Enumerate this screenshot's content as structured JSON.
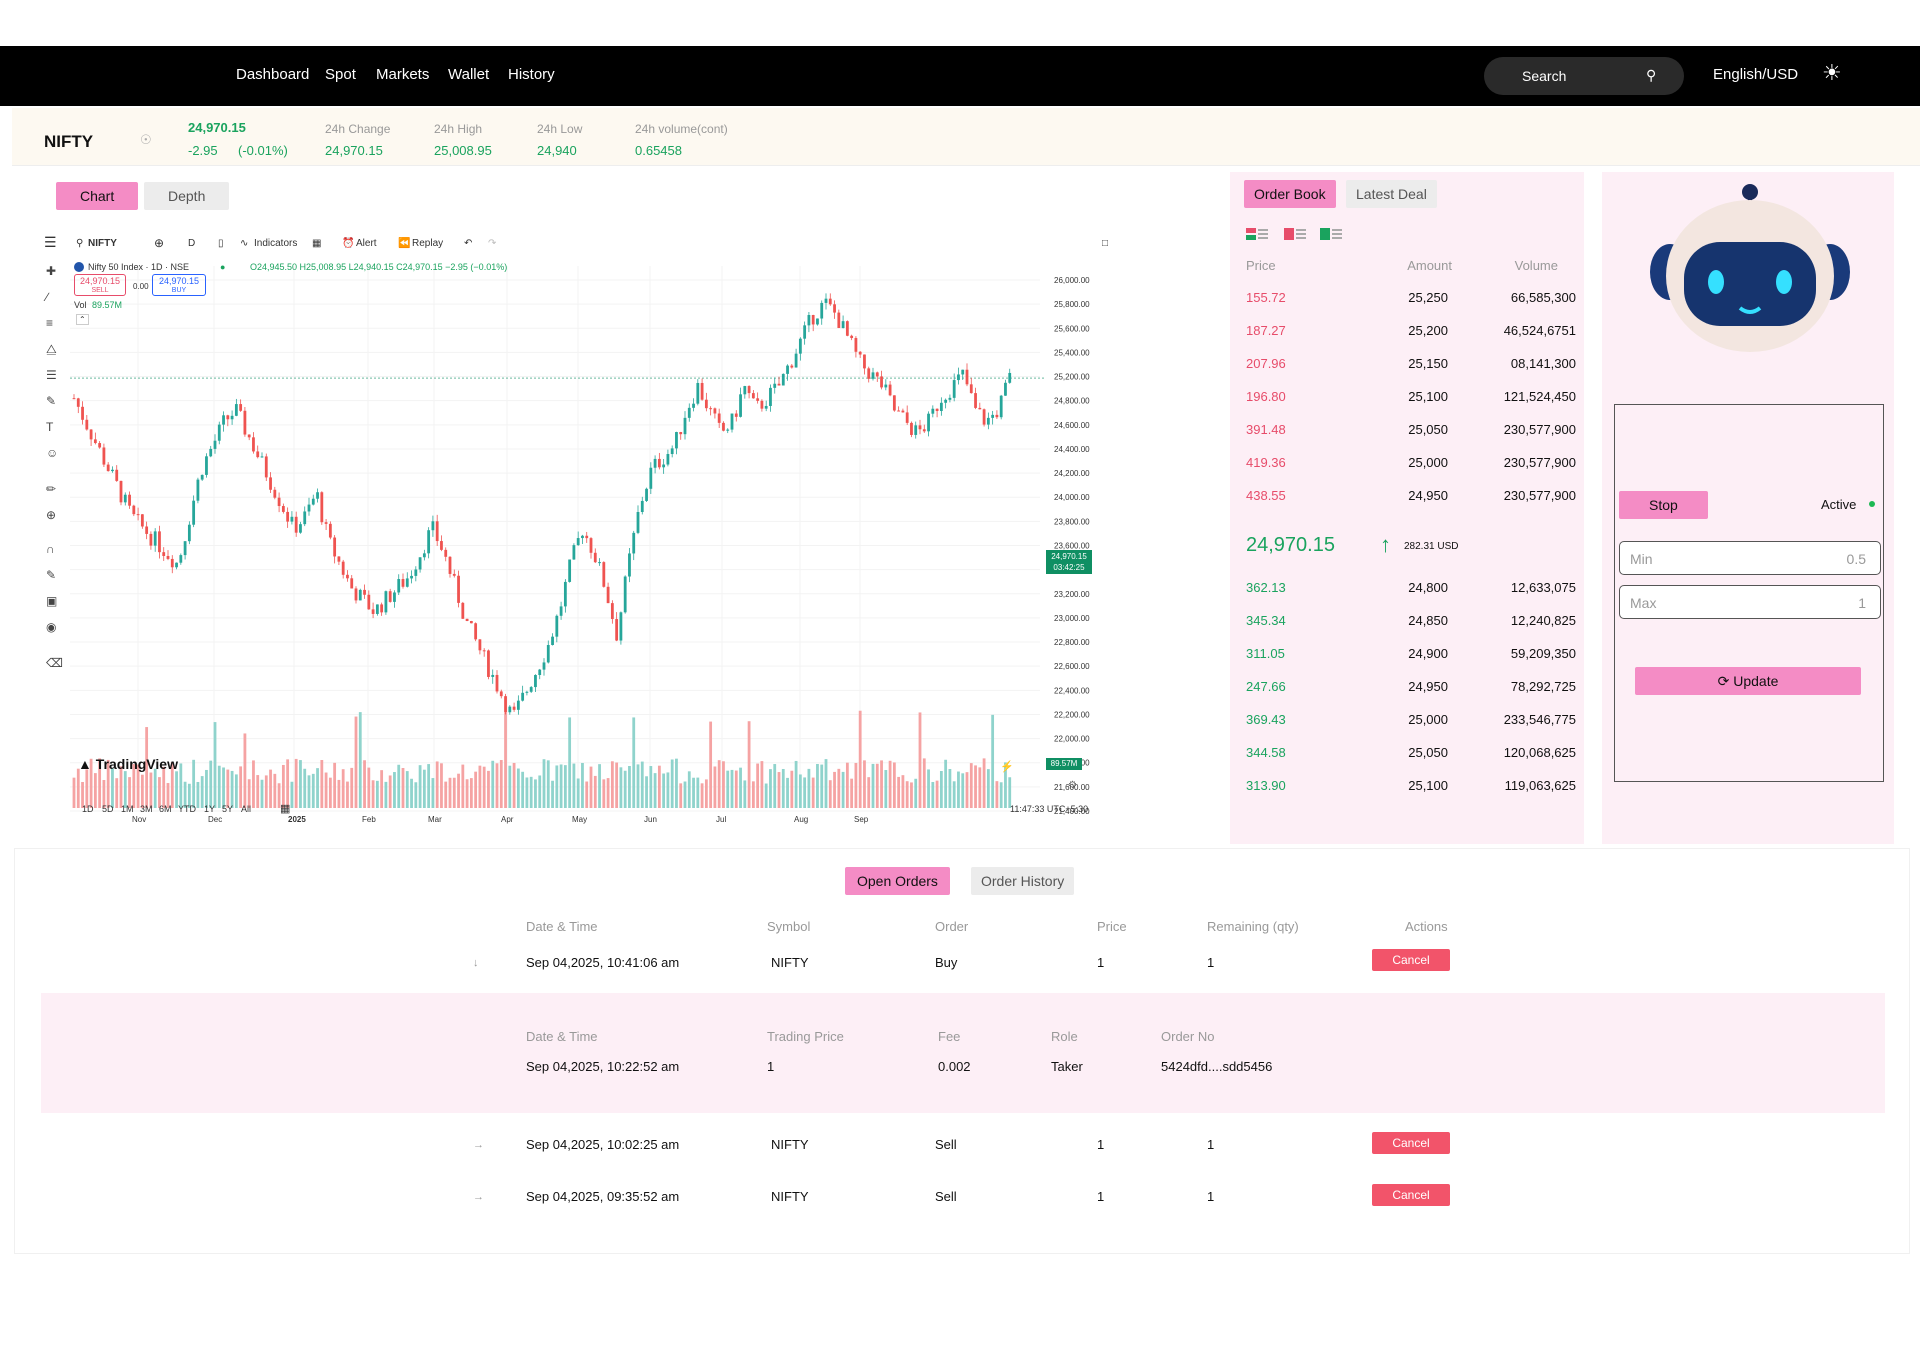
{
  "nav": {
    "items": [
      "Dashboard",
      "Spot",
      "Markets",
      "Wallet",
      "History"
    ],
    "search_label": "Search",
    "language": "English/USD"
  },
  "ticker": {
    "symbol": "NIFTY",
    "last_price": "24,970.15",
    "change": "-2.95",
    "change_pct": "(-0.01%)",
    "change_label": "24h Change",
    "change_value": "24,970.15",
    "high_label": "24h High",
    "high_value": "25,008.95",
    "low_label": "24h Low",
    "low_value": "24,940",
    "volume_label": "24h volume(cont)",
    "volume_value": "0.65458"
  },
  "chart_tabs": [
    "Chart",
    "Depth"
  ],
  "tv": {
    "symbol": "NIFTY",
    "interval": "D",
    "indicators": "Indicators",
    "alert": "Alert",
    "replay": "Replay",
    "legend_title": "Nifty 50 Index · 1D · NSE",
    "ohlc": "O24,945.50 H25,008.95 L24,940.15 C24,970.15 −2.95 (−0.01%)",
    "sell_price": "24,970.15",
    "sell_label": "SELL",
    "spread": "0.00",
    "buy_price": "24,970.15",
    "buy_label": "BUY",
    "vol_label": "Vol",
    "vol_value": "89.57M",
    "price_tag": "24,970.15",
    "price_tag_time": "03:42:25",
    "vol_tag": "89.57M",
    "logo": "TradingView",
    "ranges": [
      "1D",
      "5D",
      "1M",
      "3M",
      "6M",
      "YTD",
      "1Y",
      "5Y",
      "All"
    ],
    "clock": "11:47:33 UTC+5:30"
  },
  "chart_data": {
    "type": "candlestick",
    "x_ticks": [
      "Nov",
      "Dec",
      "2025",
      "Feb",
      "Mar",
      "Apr",
      "May",
      "Jun",
      "Jul",
      "Aug",
      "Sep"
    ],
    "y_ticks": [
      "26,000.00",
      "25,800.00",
      "25,600.00",
      "25,400.00",
      "25,200.00",
      "24,800.00",
      "24,600.00",
      "24,400.00",
      "24,200.00",
      "24,000.00",
      "23,800.00",
      "23,600.00",
      "23,400.00",
      "23,200.00",
      "23,000.00",
      "22,800.00",
      "22,600.00",
      "22,400.00",
      "22,200.00",
      "22,000.00",
      "21,800.00",
      "21,600.00",
      "21,400.00"
    ],
    "ylim": [
      21400,
      26000
    ],
    "close_path": [
      24800,
      24600,
      24400,
      24200,
      24000,
      23800,
      23700,
      23600,
      23500,
      23400,
      23800,
      24200,
      24400,
      24600,
      24700,
      24500,
      24300,
      24100,
      23900,
      23700,
      23800,
      24000,
      23600,
      23400,
      23200,
      23100,
      23000,
      23100,
      23200,
      23300,
      23500,
      23700,
      23500,
      23200,
      22900,
      22700,
      22500,
      22300,
      22100,
      22300,
      22500,
      22700,
      23000,
      23400,
      23700,
      23500,
      23200,
      22800,
      23400,
      23900,
      24200,
      24300,
      24400,
      24700,
      24900,
      24700,
      24500,
      24600,
      24900,
      24700,
      24800,
      24900,
      25100,
      25300,
      25500,
      25600,
      25500,
      25300,
      25100,
      25000,
      24900,
      24700,
      24600,
      24500,
      24600,
      24800,
      24900,
      25000,
      24700,
      24600,
      24700,
      24970
    ]
  },
  "orderbook": {
    "tabs": [
      "Order Book",
      "Latest Deal"
    ],
    "headers": [
      "Price",
      "Amount",
      "Volume"
    ],
    "asks": [
      [
        "155.72",
        "25,250",
        "66,585,300"
      ],
      [
        "187.27",
        "25,200",
        "46,524,6751"
      ],
      [
        "207.96",
        "25,150",
        "08,141,300"
      ],
      [
        "196.80",
        "25,100",
        "121,524,450"
      ],
      [
        "391.48",
        "25,050",
        "230,577,900"
      ],
      [
        "419.36",
        "25,000",
        "230,577,900"
      ],
      [
        "438.55",
        "24,950",
        "230,577,900"
      ]
    ],
    "mid_price": "24,970.15",
    "mid_usd": "282.31 USD",
    "bids": [
      [
        "362.13",
        "24,800",
        "12,633,075"
      ],
      [
        "345.34",
        "24,850",
        "12,240,825"
      ],
      [
        "311.05",
        "24,900",
        "59,209,350"
      ],
      [
        "247.66",
        "24,950",
        "78,292,725"
      ],
      [
        "369.43",
        "25,000",
        "233,546,775"
      ],
      [
        "344.58",
        "25,050",
        "120,068,625"
      ],
      [
        "313.90",
        "25,100",
        "119,063,625"
      ]
    ]
  },
  "bot": {
    "stop_label": "Stop",
    "status": "Active",
    "min_placeholder": "Min",
    "min_value": "0.5",
    "max_placeholder": "Max",
    "max_value": "1",
    "update_label": "Update"
  },
  "orders": {
    "tabs": [
      "Open Orders",
      "Order History"
    ],
    "headers": [
      "Date & Time",
      "Symbol",
      "Order",
      "Price",
      "Remaining (qty)",
      "Actions"
    ],
    "rows": [
      {
        "date": "Sep 04,2025, 10:41:06 am",
        "symbol": "NIFTY",
        "order": "Buy",
        "price": "1",
        "remaining": "1",
        "action": "Cancel"
      },
      {
        "date": "Sep 04,2025, 10:02:25 am",
        "symbol": "NIFTY",
        "order": "Sell",
        "price": "1",
        "remaining": "1",
        "action": "Cancel"
      },
      {
        "date": "Sep 04,2025, 09:35:52 am",
        "symbol": "NIFTY",
        "order": "Sell",
        "price": "1",
        "remaining": "1",
        "action": "Cancel"
      }
    ],
    "detail_headers": [
      "Date & Time",
      "Trading Price",
      "Fee",
      "Role",
      "Order No"
    ],
    "detail": {
      "date": "Sep 04,2025, 10:22:52 am",
      "trading_price": "1",
      "fee": "0.002",
      "role": "Taker",
      "order_no": "5424dfd....sdd5456"
    }
  }
}
